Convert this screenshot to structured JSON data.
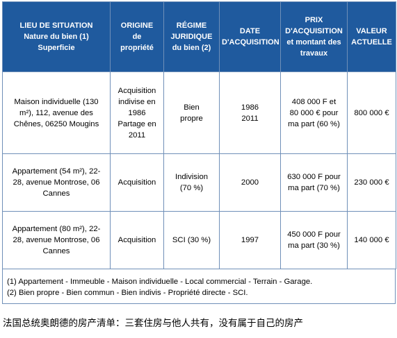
{
  "table": {
    "headers": [
      {
        "lines": [
          "LIEU DE SITUATION",
          "Nature du bien (1)",
          "Superficie"
        ]
      },
      {
        "lines": [
          "ORIGINE",
          "de",
          "propriété"
        ]
      },
      {
        "lines": [
          "RÉGIME",
          "JURIDIQUE",
          "du bien (2)"
        ]
      },
      {
        "lines": [
          "DATE",
          "D'ACQUISITION"
        ]
      },
      {
        "lines": [
          "PRIX",
          "D'ACQUISITION",
          "et montant des",
          "travaux"
        ]
      },
      {
        "lines": [
          "VALEUR",
          "ACTUELLE"
        ]
      }
    ],
    "rows": [
      {
        "location": [
          "Maison individuelle (130",
          "m²), 112, avenue des",
          "Chênes, 06250 Mougins"
        ],
        "origin": [
          "Acquisition",
          "indivise en",
          "1986",
          "Partage en",
          "2011"
        ],
        "regime": [
          "Bien",
          "propre"
        ],
        "date": [
          "1986",
          "2011"
        ],
        "price": [
          "408 000 F et",
          "80 000 € pour",
          "ma part (60 %)"
        ],
        "value": "800 000 €"
      },
      {
        "location": [
          "Appartement (54 m²), 22-",
          "28, avenue Montrose, 06",
          "Cannes"
        ],
        "origin": [
          "Acquisition"
        ],
        "regime": [
          "Indivision",
          "(70 %)"
        ],
        "date": [
          "2000"
        ],
        "price": [
          "630 000 F pour",
          "ma part (70 %)"
        ],
        "value": "230 000 €"
      },
      {
        "location": [
          "Appartement (80 m²), 22-",
          "28, avenue Montrose, 06",
          "Cannes"
        ],
        "origin": [
          "Acquisition"
        ],
        "regime": [
          "SCI (30 %)"
        ],
        "date": [
          "1997"
        ],
        "price": [
          "450 000 F pour",
          "ma part (30 %)"
        ],
        "value": "140 000 €"
      }
    ]
  },
  "notes": {
    "note1": "(1) Appartement - Immeuble - Maison individuelle - Local commercial - Terrain - Garage.",
    "note2": "(2) Bien propre - Bien commun - Bien indivis - Propriété directe - SCI."
  },
  "caption": "法国总统奥朗德的房产清单：三套住房与他人共有，没有属于自己的房产",
  "colors": {
    "header_bg": "#1f5a9e",
    "header_text": "#ffffff",
    "border": "#6f8fb8"
  }
}
